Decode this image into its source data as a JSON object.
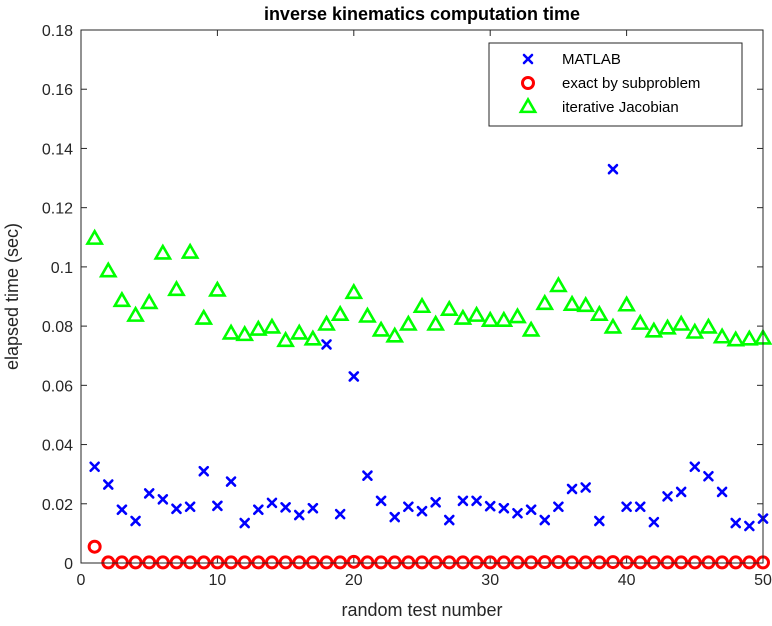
{
  "chart_data": {
    "type": "scatter",
    "title": "inverse kinematics computation time",
    "xlabel": "random test number",
    "ylabel": "elapsed time (sec)",
    "xlim": [
      0,
      50
    ],
    "ylim": [
      0,
      0.18
    ],
    "xticks": [
      "0",
      "10",
      "20",
      "30",
      "40",
      "50"
    ],
    "yticks": [
      "0",
      "0.02",
      "0.04",
      "0.06",
      "0.08",
      "0.1",
      "0.12",
      "0.14",
      "0.16",
      "0.18"
    ],
    "legend_position": "top-right",
    "box": true,
    "x": [
      1,
      2,
      3,
      4,
      5,
      6,
      7,
      8,
      9,
      10,
      11,
      12,
      13,
      14,
      15,
      16,
      17,
      18,
      19,
      20,
      21,
      22,
      23,
      24,
      25,
      26,
      27,
      28,
      29,
      30,
      31,
      32,
      33,
      34,
      35,
      36,
      37,
      38,
      39,
      40,
      41,
      42,
      43,
      44,
      45,
      46,
      47,
      48,
      49,
      50
    ],
    "series": [
      {
        "name": "MATLAB",
        "marker": "x",
        "color": "#0000ff",
        "values": [
          0.0325,
          0.0265,
          0.018,
          0.0142,
          0.0235,
          0.0215,
          0.0183,
          0.019,
          0.031,
          0.0193,
          0.0275,
          0.0135,
          0.018,
          0.0203,
          0.0188,
          0.0162,
          0.0185,
          0.0738,
          0.0165,
          0.063,
          0.0295,
          0.021,
          0.0155,
          0.019,
          0.0175,
          0.0205,
          0.0145,
          0.021,
          0.021,
          0.0192,
          0.0185,
          0.0168,
          0.018,
          0.0145,
          0.019,
          0.025,
          0.0255,
          0.0142,
          0.133,
          0.019,
          0.019,
          0.0138,
          0.0225,
          0.024,
          0.0325,
          0.0293,
          0.024,
          0.0135,
          0.0125,
          0.015
        ]
      },
      {
        "name": "exact by subproblem",
        "marker": "o",
        "color": "#ff0000",
        "values": [
          0.0055,
          0.0002,
          0.0002,
          0.0002,
          0.0002,
          0.0002,
          0.0002,
          0.0002,
          0.0002,
          0.0002,
          0.0002,
          0.0002,
          0.0002,
          0.0002,
          0.0002,
          0.0002,
          0.0002,
          0.0002,
          0.0002,
          0.0004,
          0.0002,
          0.0002,
          0.0002,
          0.0002,
          0.0002,
          0.0002,
          0.0002,
          0.0002,
          0.0002,
          0.0002,
          0.0002,
          0.0002,
          0.0002,
          0.0003,
          0.0003,
          0.0002,
          0.0002,
          0.0002,
          0.0003,
          0.0002,
          0.0002,
          0.0002,
          0.0002,
          0.0002,
          0.0002,
          0.0002,
          0.0002,
          0.0002,
          0.0002,
          0.0002
        ]
      },
      {
        "name": "iterative Jacobian",
        "marker": "triangle",
        "color": "#00ff00",
        "values": [
          0.1095,
          0.0985,
          0.0885,
          0.0835,
          0.0878,
          0.1045,
          0.0922,
          0.1048,
          0.0825,
          0.092,
          0.0775,
          0.077,
          0.0788,
          0.0795,
          0.075,
          0.0775,
          0.0755,
          0.0805,
          0.0838,
          0.0912,
          0.0832,
          0.0785,
          0.0765,
          0.0805,
          0.0865,
          0.0805,
          0.0855,
          0.0825,
          0.0835,
          0.0818,
          0.0818,
          0.083,
          0.0785,
          0.0875,
          0.0935,
          0.0872,
          0.0868,
          0.0838,
          0.0795,
          0.087,
          0.0808,
          0.0782,
          0.0792,
          0.0805,
          0.0778,
          0.0795,
          0.0762,
          0.0752,
          0.0755,
          0.0758
        ]
      }
    ]
  }
}
